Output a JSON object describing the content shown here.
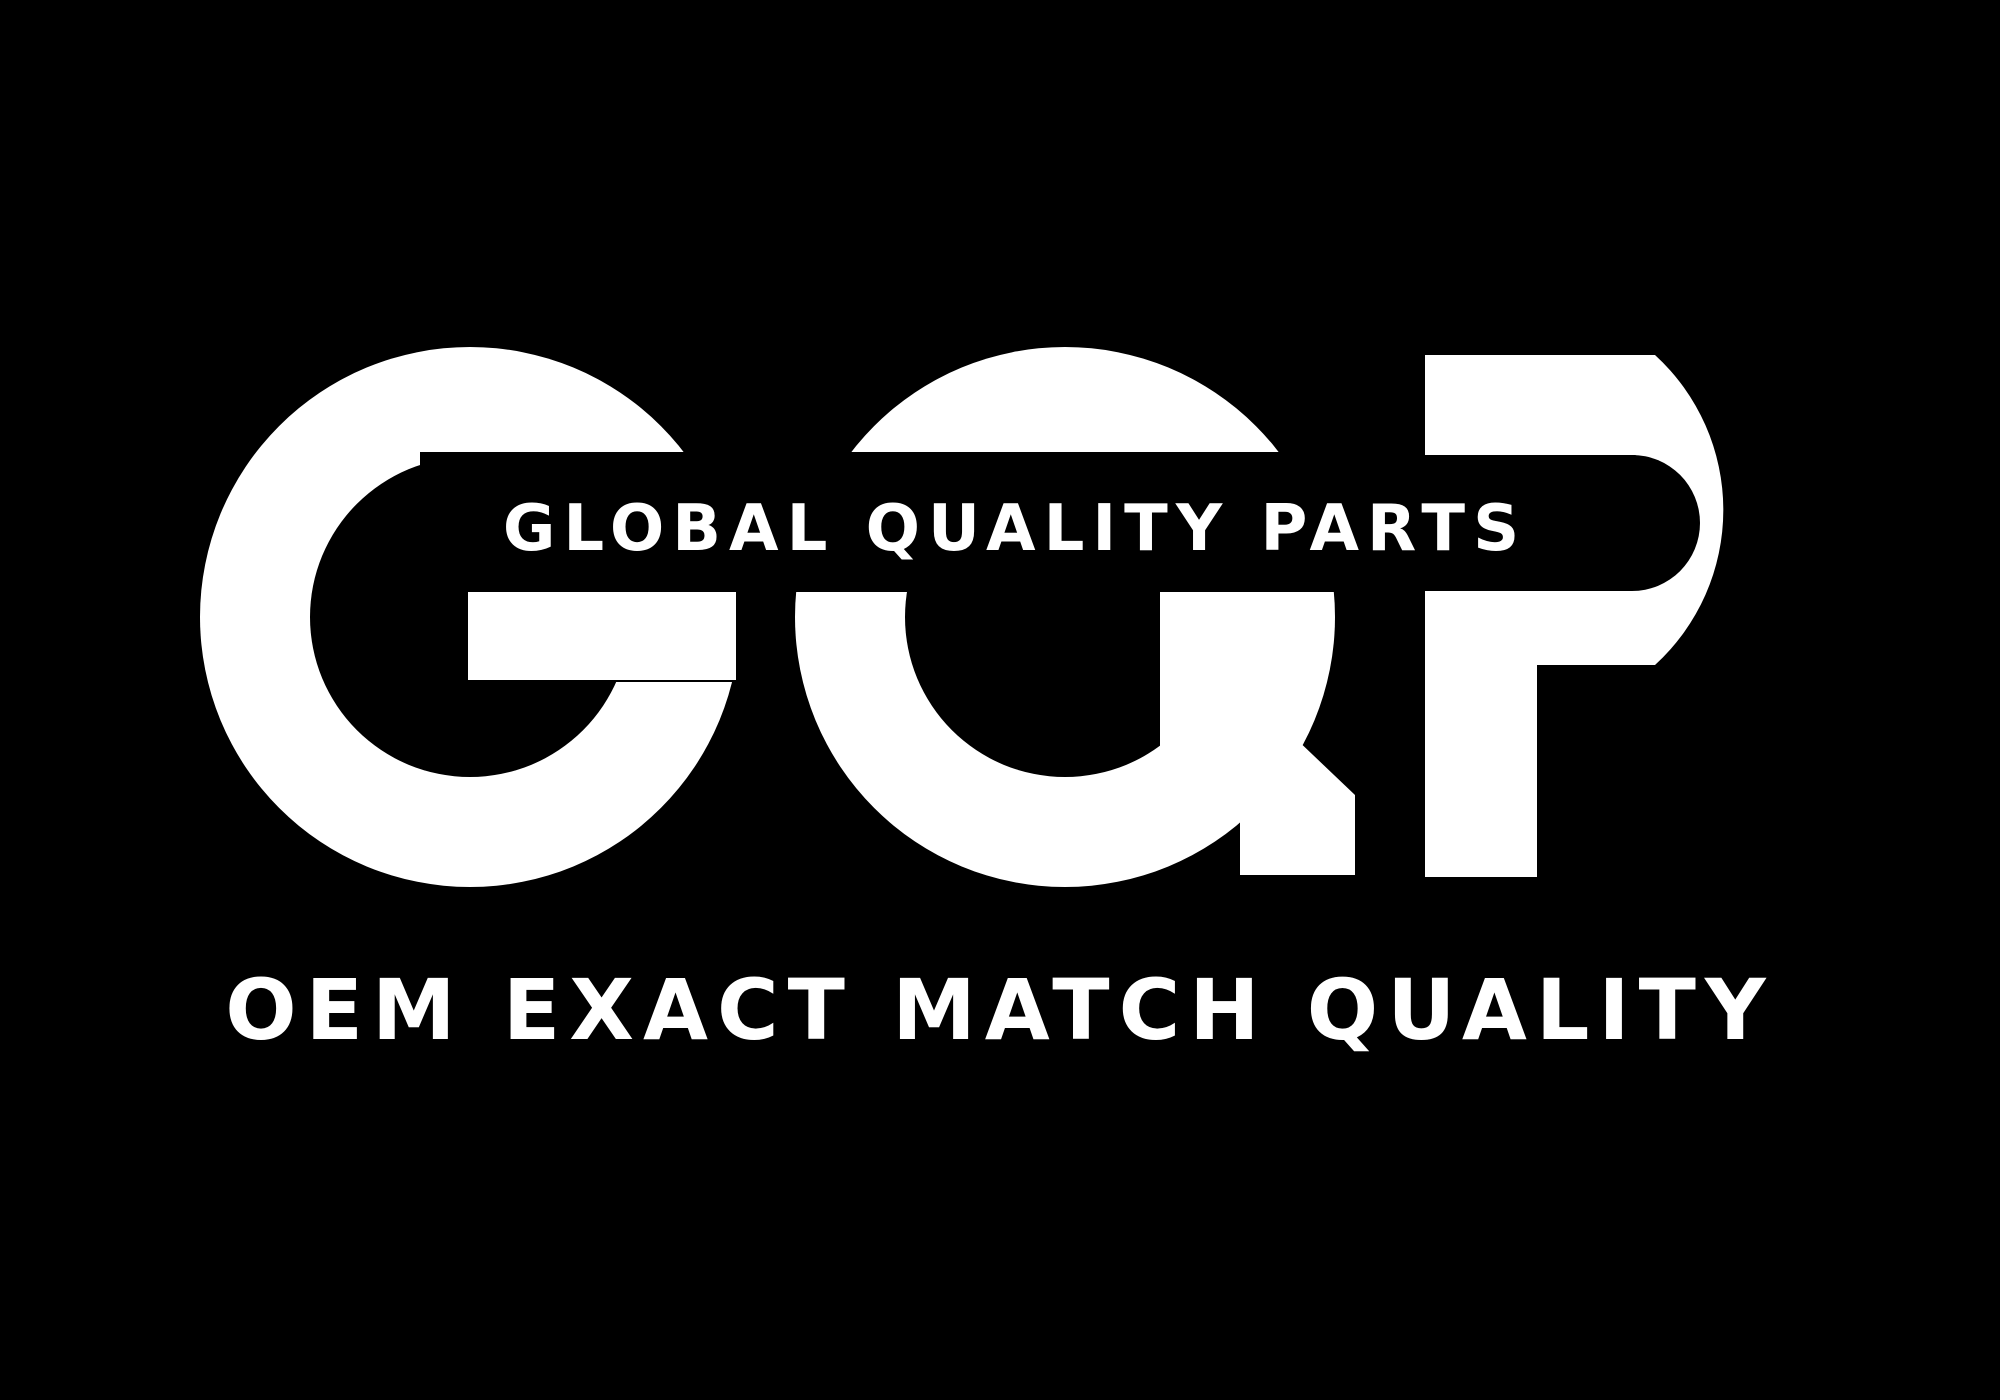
{
  "logo": {
    "monogram": "GQP",
    "band_text": "GLOBAL QUALITY PARTS",
    "tagline": "OEM EXACT MATCH QUALITY"
  },
  "colors": {
    "background": "#000000",
    "foreground": "#ffffff"
  }
}
